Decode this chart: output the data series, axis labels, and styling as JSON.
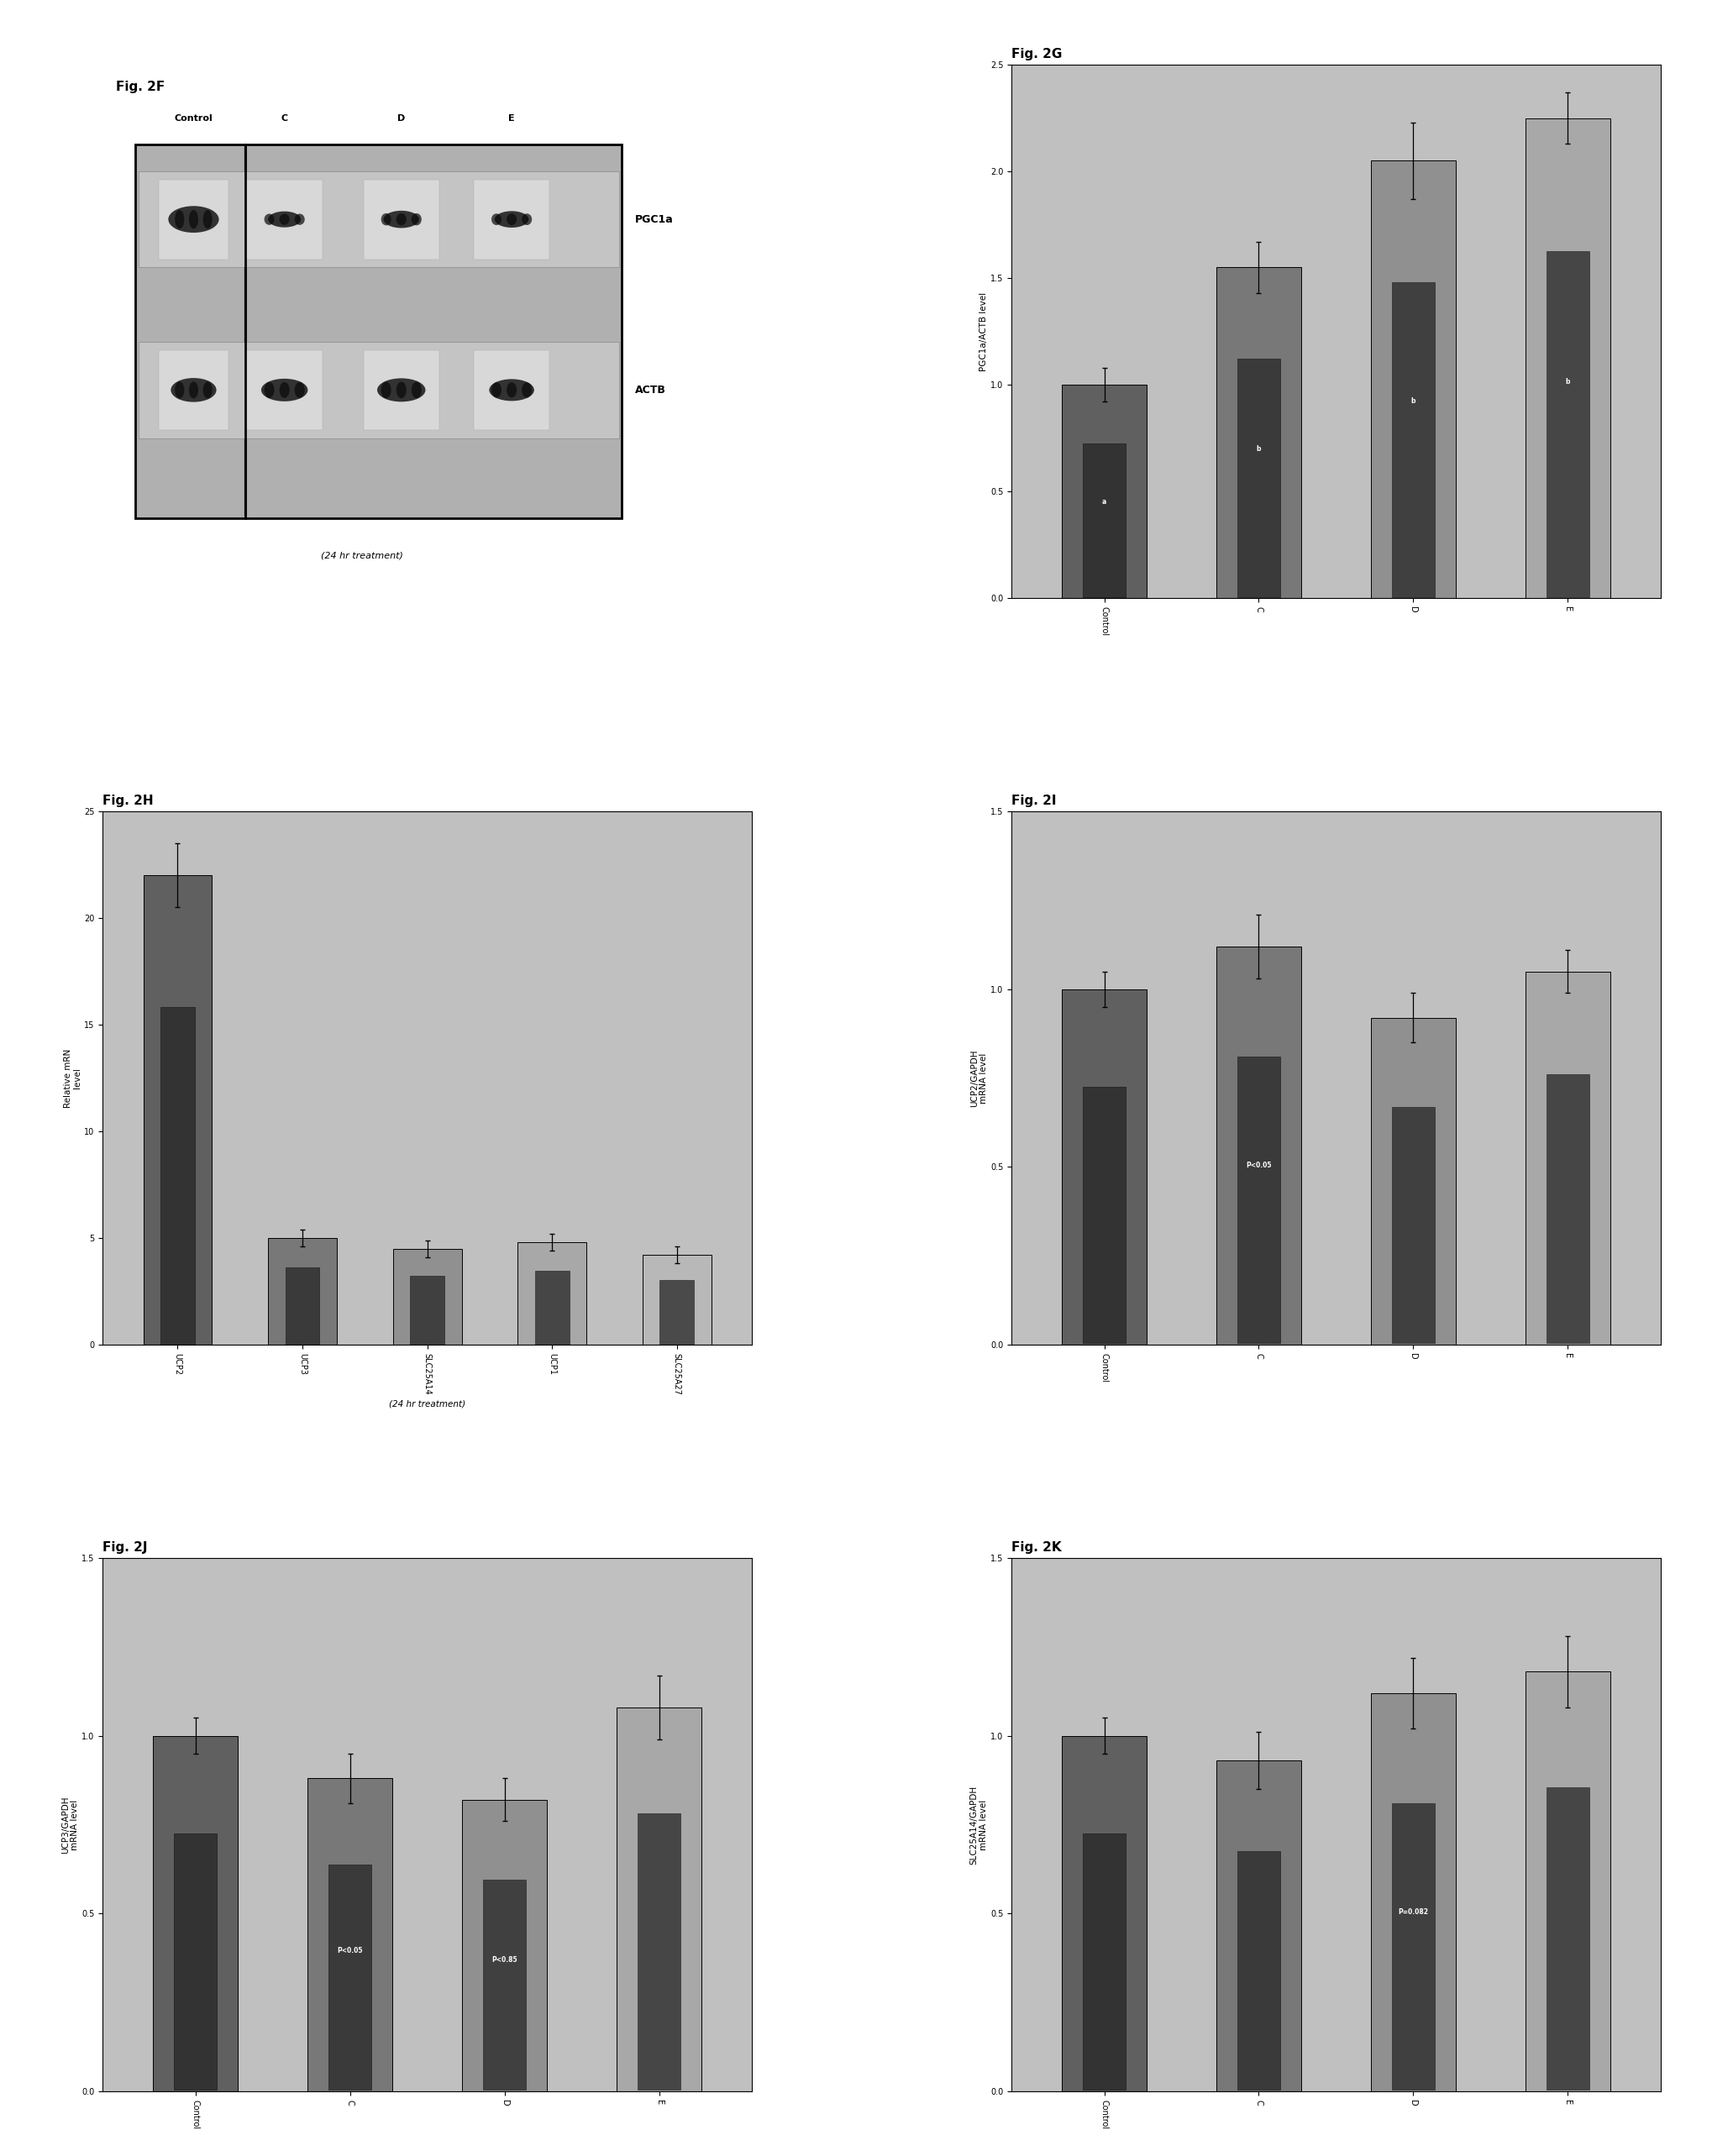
{
  "background_color": "#ffffff",
  "chart_bg": "#c0c0c0",
  "fig2G": {
    "label": "Fig. 2G",
    "ylabel": "PGC1a/ACTB level",
    "categories": [
      "Control",
      "C",
      "D",
      "E"
    ],
    "values": [
      1.0,
      1.55,
      2.05,
      2.25
    ],
    "errors": [
      0.08,
      0.12,
      0.18,
      0.12
    ],
    "ylim": [
      0.0,
      2.5
    ],
    "yticks": [
      0.0,
      0.5,
      1.0,
      1.5,
      2.0,
      2.5
    ],
    "annotations": [
      "a",
      "b",
      "b",
      "b"
    ]
  },
  "fig2H": {
    "label": "Fig. 2H",
    "ylabel": "Relative mRN\nlevel",
    "xlabel": "(24 hr treatment)",
    "categories": [
      "UCP2",
      "UCP3",
      "SLC25A14",
      "UCP1",
      "SLC25A27"
    ],
    "values": [
      22.0,
      5.0,
      4.5,
      4.8,
      4.2
    ],
    "errors": [
      1.5,
      0.4,
      0.4,
      0.4,
      0.4
    ],
    "ylim": [
      0,
      25
    ],
    "yticks": [
      0,
      5,
      10,
      15,
      20,
      25
    ],
    "annotations": [
      "",
      "",
      "",
      "",
      ""
    ]
  },
  "fig2I": {
    "label": "Fig. 2I",
    "ylabel": "UCP2/GAPDH\nmRNA level",
    "categories": [
      "Control",
      "C",
      "D",
      "E"
    ],
    "values": [
      1.0,
      1.12,
      0.92,
      1.05
    ],
    "errors": [
      0.05,
      0.09,
      0.07,
      0.06
    ],
    "ylim": [
      0.0,
      1.5
    ],
    "yticks": [
      0.0,
      0.5,
      1.0,
      1.5
    ],
    "annotations": [
      "",
      "P<0.05",
      "",
      ""
    ]
  },
  "fig2J": {
    "label": "Fig. 2J",
    "ylabel": "UCP3/GAPDH\nmRNA level",
    "categories": [
      "Control",
      "C",
      "D",
      "E"
    ],
    "values": [
      1.0,
      0.88,
      0.82,
      1.08
    ],
    "errors": [
      0.05,
      0.07,
      0.06,
      0.09
    ],
    "ylim": [
      0.0,
      1.5
    ],
    "yticks": [
      0.0,
      0.5,
      1.0,
      1.5
    ],
    "annotations": [
      "",
      "P<0.05",
      "P<0.85",
      ""
    ]
  },
  "fig2K": {
    "label": "Fig. 2K",
    "ylabel": "SLC25A14/GAPDH\nmRNA level",
    "categories": [
      "Control",
      "C",
      "D",
      "E"
    ],
    "values": [
      1.0,
      0.93,
      1.12,
      1.18
    ],
    "errors": [
      0.05,
      0.08,
      0.1,
      0.1
    ],
    "ylim": [
      0.0,
      1.5
    ],
    "yticks": [
      0.0,
      0.5,
      1.0,
      1.5
    ],
    "annotations": [
      "",
      "",
      "P=0.082",
      ""
    ]
  },
  "fig2F": {
    "label": "Fig. 2F",
    "row_labels": [
      "PGC1a",
      "ACTB"
    ],
    "col_labels": [
      "Control",
      "C",
      "D",
      "E"
    ],
    "treatment_label": "(24 hr treatment)"
  }
}
